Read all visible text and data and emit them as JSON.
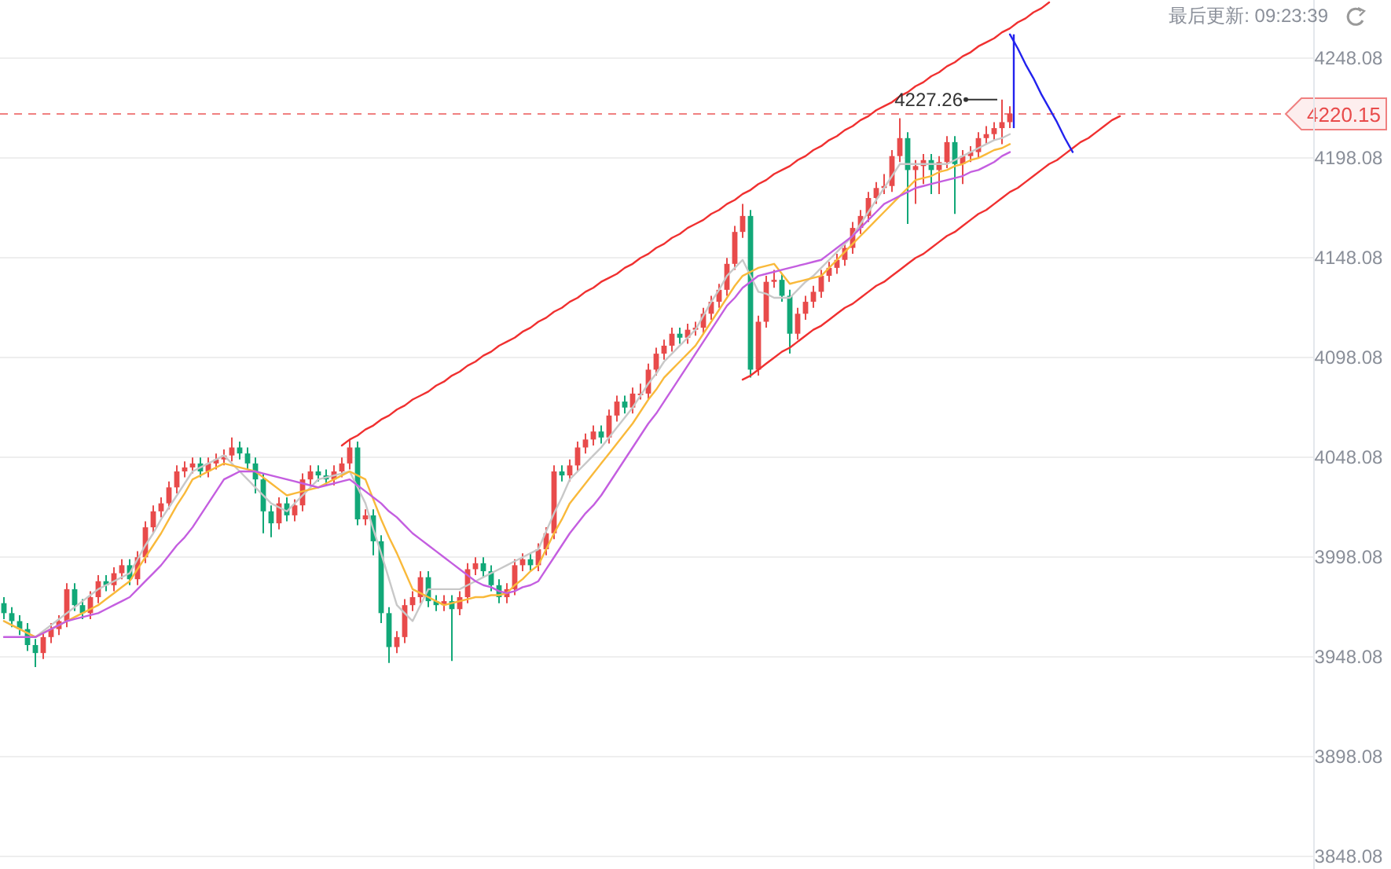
{
  "chart_data": {
    "type": "candlestick",
    "ylim": [
      3841.8,
      4277.2
    ],
    "yticks": [
      3848.08,
      3898.08,
      3948.08,
      3998.08,
      4048.08,
      4098.08,
      4148.08,
      4198.08,
      4248.08
    ],
    "tick_labels": "y",
    "grid": "y",
    "annotations": [
      "4227.26",
      "最后更新: 09:23:39"
    ],
    "ref_lines": [
      {
        "axis": "y",
        "value": 4220.15,
        "label": "4220.15",
        "color": "#f08080",
        "line_style": "dashed"
      }
    ],
    "categories": [
      null,
      null,
      null,
      null,
      null,
      null,
      null,
      null,
      null,
      null,
      null,
      null,
      null,
      null,
      null,
      null,
      null,
      null,
      null,
      null,
      null,
      null,
      null,
      null,
      null,
      null,
      null,
      null,
      null,
      null,
      null,
      null,
      null,
      null,
      null,
      null,
      null,
      null,
      null,
      null,
      null,
      null,
      null,
      null,
      null,
      null,
      null,
      null,
      null,
      null,
      null,
      null,
      null,
      null,
      null,
      null,
      null,
      null,
      null,
      null,
      null,
      null,
      null,
      null,
      null,
      null,
      null,
      null,
      null,
      null,
      null,
      null,
      null,
      null,
      null,
      null,
      null,
      null,
      null,
      null,
      null,
      null,
      null,
      null,
      null,
      null,
      null,
      null,
      null,
      null,
      null,
      null,
      null,
      null,
      null,
      null,
      null,
      null,
      null,
      null,
      null,
      null,
      null,
      null,
      null,
      null,
      null,
      null,
      null,
      null,
      null,
      null,
      null,
      null,
      null,
      null,
      null,
      null,
      null,
      null,
      null,
      null,
      null,
      null,
      null,
      null,
      null,
      null,
      null,
      null,
      null,
      null,
      null,
      null,
      null,
      null,
      null,
      null,
      null,
      null,
      null,
      null,
      null
    ],
    "ohlc": [
      [
        3975,
        3978,
        3967,
        3970
      ],
      [
        3970,
        3973,
        3963,
        3966
      ],
      [
        3966,
        3969,
        3959,
        3962
      ],
      [
        3962,
        3965,
        3951,
        3954
      ],
      [
        3954,
        3957,
        3943,
        3950
      ],
      [
        3950,
        3961,
        3947,
        3958
      ],
      [
        3958,
        3965,
        3955,
        3962
      ],
      [
        3962,
        3969,
        3959,
        3966
      ],
      [
        3966,
        3985,
        3963,
        3982
      ],
      [
        3982,
        3985,
        3971,
        3974
      ],
      [
        3974,
        3977,
        3967,
        3970
      ],
      [
        3970,
        3981,
        3967,
        3978
      ],
      [
        3978,
        3989,
        3975,
        3986
      ],
      [
        3986,
        3989,
        3981,
        3984
      ],
      [
        3984,
        3993,
        3981,
        3990
      ],
      [
        3990,
        3997,
        3987,
        3994
      ],
      [
        3994,
        3997,
        3984,
        3987
      ],
      [
        3987,
        4001,
        3984,
        3998
      ],
      [
        3998,
        4016,
        3995,
        4013
      ],
      [
        4013,
        4024,
        4010,
        4021
      ],
      [
        4021,
        4028,
        4018,
        4025
      ],
      [
        4025,
        4036,
        4022,
        4033
      ],
      [
        4033,
        4044,
        4030,
        4041
      ],
      [
        4041,
        4046,
        4038,
        4043
      ],
      [
        4043,
        4048,
        4040,
        4045
      ],
      [
        4045,
        4048,
        4038,
        4041
      ],
      [
        4041,
        4048,
        4038,
        4045
      ],
      [
        4045,
        4050,
        4042,
        4047
      ],
      [
        4047,
        4052,
        4044,
        4049
      ],
      [
        4049,
        4058,
        4046,
        4053
      ],
      [
        4053,
        4056,
        4047,
        4050
      ],
      [
        4050,
        4053,
        4042,
        4045
      ],
      [
        4045,
        4048,
        4030,
        4037
      ],
      [
        4037,
        4040,
        4010,
        4021
      ],
      [
        4021,
        4024,
        4008,
        4015
      ],
      [
        4015,
        4028,
        4012,
        4025
      ],
      [
        4025,
        4028,
        4016,
        4019
      ],
      [
        4019,
        4027,
        4016,
        4024
      ],
      [
        4024,
        4040,
        4021,
        4037
      ],
      [
        4037,
        4044,
        4034,
        4041
      ],
      [
        4041,
        4044,
        4036,
        4039
      ],
      [
        4039,
        4042,
        4034,
        4037
      ],
      [
        4037,
        4044,
        4034,
        4041
      ],
      [
        4041,
        4048,
        4038,
        4045
      ],
      [
        4045,
        4057,
        4042,
        4053
      ],
      [
        4053,
        4056,
        4014,
        4017
      ],
      [
        4017,
        4022,
        4014,
        4019
      ],
      [
        4019,
        4022,
        3999,
        4006
      ],
      [
        4006,
        4009,
        3965,
        3970
      ],
      [
        3970,
        3973,
        3945,
        3953
      ],
      [
        3953,
        3961,
        3950,
        3958
      ],
      [
        3958,
        3977,
        3955,
        3974
      ],
      [
        3974,
        3981,
        3971,
        3978
      ],
      [
        3978,
        3991,
        3975,
        3988
      ],
      [
        3988,
        3991,
        3973,
        3976
      ],
      [
        3976,
        3979,
        3971,
        3974
      ],
      [
        3974,
        3979,
        3971,
        3976
      ],
      [
        3976,
        3979,
        3946,
        3972
      ],
      [
        3972,
        3981,
        3969,
        3978
      ],
      [
        3978,
        3995,
        3975,
        3992
      ],
      [
        3992,
        3998,
        3989,
        3995
      ],
      [
        3995,
        3998,
        3988,
        3991
      ],
      [
        3991,
        3994,
        3981,
        3984
      ],
      [
        3984,
        3987,
        3975,
        3978
      ],
      [
        3978,
        3985,
        3975,
        3982
      ],
      [
        3982,
        3997,
        3979,
        3994
      ],
      [
        3994,
        4000,
        3991,
        3997
      ],
      [
        3997,
        4000,
        3991,
        3994
      ],
      [
        3994,
        4005,
        3991,
        4002
      ],
      [
        4002,
        4013,
        3999,
        4010
      ],
      [
        4010,
        4044,
        4007,
        4041
      ],
      [
        4041,
        4044,
        4036,
        4039
      ],
      [
        4039,
        4047,
        4036,
        4044
      ],
      [
        4044,
        4056,
        4041,
        4053
      ],
      [
        4053,
        4060,
        4050,
        4057
      ],
      [
        4057,
        4064,
        4054,
        4061
      ],
      [
        4061,
        4064,
        4055,
        4058
      ],
      [
        4058,
        4072,
        4055,
        4069
      ],
      [
        4069,
        4079,
        4066,
        4076
      ],
      [
        4076,
        4079,
        4070,
        4073
      ],
      [
        4073,
        4083,
        4070,
        4080
      ],
      [
        4080,
        4085,
        4077,
        4080
      ],
      [
        4080,
        4095,
        4077,
        4092
      ],
      [
        4092,
        4103,
        4089,
        4100
      ],
      [
        4100,
        4107,
        4097,
        4104
      ],
      [
        4104,
        4113,
        4101,
        4110
      ],
      [
        4110,
        4113,
        4105,
        4108
      ],
      [
        4108,
        4115,
        4105,
        4112
      ],
      [
        4112,
        4116,
        4109,
        4113
      ],
      [
        4113,
        4123,
        4110,
        4120
      ],
      [
        4120,
        4129,
        4117,
        4126
      ],
      [
        4126,
        4135,
        4123,
        4132
      ],
      [
        4132,
        4148,
        4129,
        4145
      ],
      [
        4145,
        4164,
        4142,
        4161
      ],
      [
        4161,
        4175,
        4158,
        4169
      ],
      [
        4169,
        4172,
        4088,
        4092
      ],
      [
        4092,
        4119,
        4089,
        4116
      ],
      [
        4116,
        4139,
        4113,
        4136
      ],
      [
        4136,
        4142,
        4133,
        4137
      ],
      [
        4137,
        4140,
        4126,
        4129
      ],
      [
        4129,
        4132,
        4100,
        4110
      ],
      [
        4110,
        4123,
        4107,
        4120
      ],
      [
        4120,
        4129,
        4117,
        4126
      ],
      [
        4126,
        4134,
        4123,
        4131
      ],
      [
        4131,
        4142,
        4128,
        4139
      ],
      [
        4139,
        4146,
        4136,
        4143
      ],
      [
        4143,
        4150,
        4140,
        4147
      ],
      [
        4147,
        4156,
        4144,
        4153
      ],
      [
        4153,
        4166,
        4150,
        4163
      ],
      [
        4163,
        4172,
        4160,
        4169
      ],
      [
        4169,
        4181,
        4166,
        4178
      ],
      [
        4178,
        4186,
        4175,
        4183
      ],
      [
        4183,
        4190,
        4180,
        4184
      ],
      [
        4184,
        4202,
        4181,
        4199
      ],
      [
        4199,
        4218,
        4196,
        4208
      ],
      [
        4208,
        4211,
        4165,
        4192
      ],
      [
        4192,
        4197,
        4175,
        4194
      ],
      [
        4194,
        4200,
        4185,
        4197
      ],
      [
        4197,
        4200,
        4180,
        4192
      ],
      [
        4192,
        4199,
        4180,
        4196
      ],
      [
        4196,
        4209,
        4193,
        4206
      ],
      [
        4206,
        4209,
        4170,
        4195
      ],
      [
        4195,
        4202,
        4185,
        4199
      ],
      [
        4199,
        4204,
        4196,
        4201
      ],
      [
        4201,
        4211,
        4198,
        4208
      ],
      [
        4208,
        4214,
        4205,
        4210
      ],
      [
        4210,
        4216,
        4207,
        4213
      ],
      [
        4213,
        4227.26,
        4205,
        4216
      ],
      [
        4216,
        4224,
        4213,
        4220.15
      ],
      null,
      null,
      null,
      null,
      null,
      null,
      null,
      null,
      null,
      null,
      null,
      null,
      null,
      null
    ],
    "series": [
      {
        "type": "line",
        "color": "#c8c8c8",
        "values": [
          3966,
          3964,
          3962,
          3960,
          3958,
          3961,
          3964,
          3967,
          3970,
          3973,
          3976,
          3979,
          3982,
          3984,
          3986,
          3988,
          3990,
          3997,
          4004,
          4010,
          4017,
          4023,
          4029,
          4035,
          4041,
          4043,
          4045,
          4047,
          4049,
          4045,
          4041,
          4037,
          4033,
          4029,
          4025,
          4023,
          4021,
          4025,
          4029,
          4033,
          4037,
          4038,
          4039,
          4040,
          4041,
          4033,
          4025,
          4012,
          4000,
          3987,
          3974,
          3970,
          3966,
          3974,
          3982,
          3982,
          3982,
          3982,
          3982,
          3984,
          3986,
          3988,
          3990,
          3992,
          3994,
          3996,
          3998,
          4000,
          4002,
          4011,
          4020,
          4028,
          4037,
          4041,
          4045,
          4049,
          4053,
          4058,
          4063,
          4068,
          4073,
          4079,
          4085,
          4090,
          4096,
          4100,
          4104,
          4108,
          4112,
          4119,
          4126,
          4132,
          4139,
          4143,
          4147,
          4139,
          4131,
          4130,
          4128,
          4128,
          4128,
          4132,
          4136,
          4139,
          4143,
          4147,
          4151,
          4155,
          4159,
          4165,
          4171,
          4177,
          4183,
          4189,
          4195,
          4195,
          4195,
          4195,
          4195,
          4195,
          4195,
          4197,
          4199,
          4201,
          4203,
          4205,
          4207,
          4208,
          4210,
          null,
          null,
          null,
          null,
          null,
          null,
          null,
          null,
          null,
          null,
          null,
          null,
          null,
          null
        ]
      },
      {
        "type": "line",
        "color": "#f9b93a",
        "values": [
          3966,
          3964,
          3962,
          3960,
          3958,
          3960,
          3962,
          3964,
          3966,
          3968,
          3970,
          3972,
          3974,
          3977,
          3980,
          3983,
          3986,
          3992,
          3998,
          4004,
          4010,
          4017,
          4024,
          4030,
          4037,
          4039,
          4041,
          4043,
          4045,
          4044,
          4043,
          4042,
          4041,
          4038,
          4035,
          4032,
          4029,
          4030,
          4031,
          4032,
          4033,
          4035,
          4037,
          4039,
          4041,
          4039,
          4037,
          4027,
          4017,
          4008,
          4000,
          3991,
          3982,
          3980,
          3978,
          3976,
          3974,
          3975,
          3976,
          3977,
          3978,
          3978,
          3979,
          3979,
          3980,
          3984,
          3987,
          3991,
          3994,
          4002,
          4010,
          4017,
          4025,
          4030,
          4035,
          4040,
          4045,
          4050,
          4055,
          4060,
          4065,
          4071,
          4077,
          4082,
          4088,
          4092,
          4096,
          4100,
          4104,
          4110,
          4116,
          4122,
          4128,
          4134,
          4139,
          4141,
          4143,
          4144,
          4145,
          4140,
          4135,
          4136,
          4137,
          4138,
          4139,
          4143,
          4147,
          4151,
          4155,
          4159,
          4163,
          4167,
          4171,
          4175,
          4179,
          4183,
          4187,
          4188,
          4189,
          4191,
          4192,
          4194,
          4195,
          4197,
          4198,
          4200,
          4202,
          4203,
          4205,
          null,
          null,
          null,
          null,
          null,
          null,
          null,
          null,
          null,
          null,
          null,
          null,
          null,
          null
        ]
      },
      {
        "type": "line",
        "color": "#c45ee0",
        "values": [
          3958,
          3958,
          3958,
          3958,
          3958,
          3960,
          3962,
          3964,
          3966,
          3967,
          3968,
          3969,
          3970,
          3972,
          3974,
          3976,
          3978,
          3982,
          3986,
          3990,
          3994,
          3999,
          4004,
          4008,
          4013,
          4019,
          4025,
          4031,
          4037,
          4039,
          4041,
          4041,
          4041,
          4040,
          4039,
          4038,
          4037,
          4036,
          4035,
          4034,
          4033,
          4034,
          4035,
          4036,
          4037,
          4034,
          4031,
          4028,
          4025,
          4021,
          4018,
          4014,
          4010,
          4007,
          4004,
          4001,
          3998,
          3995,
          3992,
          3989,
          3986,
          3984,
          3983,
          3981,
          3980,
          3981,
          3983,
          3984,
          3986,
          3992,
          3998,
          4004,
          4010,
          4015,
          4020,
          4024,
          4029,
          4035,
          4041,
          4047,
          4053,
          4059,
          4065,
          4070,
          4076,
          4082,
          4088,
          4094,
          4100,
          4106,
          4112,
          4118,
          4124,
          4128,
          4133,
          4136,
          4139,
          4140,
          4141,
          4142,
          4143,
          4144,
          4145,
          4146,
          4147,
          4150,
          4153,
          4156,
          4159,
          4163,
          4167,
          4171,
          4175,
          4177,
          4179,
          4181,
          4183,
          4184,
          4185,
          4186,
          4187,
          4188,
          4189,
          4191,
          4192,
          4194,
          4196,
          4199,
          4201,
          null,
          null,
          null,
          null,
          null,
          null,
          null,
          null,
          null,
          null,
          null,
          null,
          null,
          null
        ]
      },
      {
        "type": "line",
        "color": "#f03030",
        "values": [
          null,
          null,
          null,
          null,
          null,
          null,
          null,
          null,
          null,
          null,
          null,
          null,
          null,
          null,
          null,
          null,
          null,
          null,
          null,
          null,
          null,
          null,
          null,
          null,
          null,
          null,
          null,
          null,
          null,
          null,
          null,
          null,
          null,
          null,
          null,
          null,
          null,
          null,
          null,
          null,
          null,
          null,
          null,
          4054,
          4057,
          4059,
          4062,
          4064,
          4067,
          4069,
          4072,
          4074,
          4077,
          4079,
          4081,
          4084,
          4086,
          4089,
          4091,
          4094,
          4096,
          4099,
          4101,
          4104,
          4106,
          4108,
          4111,
          4113,
          4116,
          4118,
          4121,
          4123,
          4126,
          4128,
          4131,
          4133,
          4136,
          4138,
          4140,
          4143,
          4145,
          4148,
          4150,
          4153,
          4155,
          4158,
          4160,
          4163,
          4165,
          4167,
          4170,
          4172,
          4175,
          4177,
          4180,
          4182,
          4185,
          4187,
          4190,
          4192,
          4194,
          4197,
          4199,
          4202,
          4204,
          4207,
          4209,
          4212,
          4214,
          4217,
          4219,
          4222,
          4224,
          4226,
          4229,
          4231,
          4234,
          4236,
          4239,
          4241,
          4244,
          4246,
          4249,
          4251,
          4254,
          4256,
          4258,
          4261,
          4263,
          4266,
          4268,
          4271,
          4273,
          4276,
          null,
          null,
          null,
          null,
          null,
          null,
          null,
          null,
          null
        ]
      },
      {
        "type": "line",
        "color": "#f03030",
        "values": [
          null,
          null,
          null,
          null,
          null,
          null,
          null,
          null,
          null,
          null,
          null,
          null,
          null,
          null,
          null,
          null,
          null,
          null,
          null,
          null,
          null,
          null,
          null,
          null,
          null,
          null,
          null,
          null,
          null,
          null,
          null,
          null,
          null,
          null,
          null,
          null,
          null,
          null,
          null,
          null,
          null,
          null,
          null,
          null,
          null,
          null,
          null,
          null,
          null,
          null,
          null,
          null,
          null,
          null,
          null,
          null,
          null,
          null,
          null,
          null,
          null,
          null,
          null,
          null,
          null,
          null,
          null,
          null,
          null,
          null,
          null,
          null,
          null,
          null,
          null,
          null,
          null,
          null,
          null,
          null,
          null,
          null,
          null,
          null,
          null,
          null,
          null,
          null,
          null,
          null,
          null,
          null,
          null,
          null,
          4087,
          4089,
          4092,
          4095,
          4098,
          4101,
          4103,
          4106,
          4109,
          4112,
          4114,
          4117,
          4120,
          4123,
          4125,
          4128,
          4131,
          4134,
          4136,
          4139,
          4142,
          4145,
          4148,
          4150,
          4153,
          4156,
          4159,
          4161,
          4164,
          4167,
          4170,
          4172,
          4175,
          4178,
          4181,
          4183,
          4186,
          4189,
          4192,
          4195,
          4197,
          4200,
          4203,
          4206,
          4208,
          4211,
          4214,
          4217,
          4219
        ]
      },
      {
        "type": "line",
        "color": "#2222ee",
        "values": [
          null,
          null,
          null,
          null,
          null,
          null,
          null,
          null,
          null,
          null,
          null,
          null,
          null,
          null,
          null,
          null,
          null,
          null,
          null,
          null,
          null,
          null,
          null,
          null,
          null,
          null,
          null,
          null,
          null,
          null,
          null,
          null,
          null,
          null,
          null,
          null,
          null,
          null,
          null,
          null,
          null,
          null,
          null,
          null,
          null,
          null,
          null,
          null,
          null,
          null,
          null,
          null,
          null,
          null,
          null,
          null,
          null,
          null,
          null,
          null,
          null,
          null,
          null,
          null,
          null,
          null,
          null,
          null,
          null,
          null,
          null,
          null,
          null,
          null,
          null,
          null,
          null,
          null,
          null,
          null,
          null,
          null,
          null,
          null,
          null,
          null,
          null,
          null,
          null,
          null,
          null,
          null,
          null,
          null,
          null,
          null,
          null,
          null,
          null,
          null,
          null,
          null,
          null,
          null,
          null,
          null,
          null,
          null,
          null,
          null,
          null,
          null,
          null,
          null,
          null,
          null,
          null,
          null,
          null,
          null,
          null,
          null,
          null,
          null,
          null,
          null,
          null,
          null,
          4260,
          4253,
          4245,
          4238,
          4230,
          4223,
          4216,
          4208,
          4201,
          null,
          null,
          null,
          null,
          null,
          null
        ]
      }
    ]
  }
}
